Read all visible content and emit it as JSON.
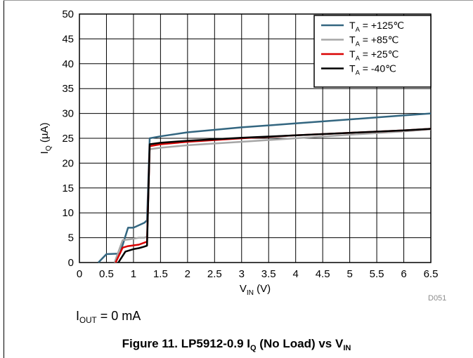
{
  "chart_data": {
    "type": "line",
    "xlabel": {
      "main": "V",
      "sub": "IN",
      "tail": " (V)"
    },
    "ylabel": {
      "main": "I",
      "sub": "Q",
      "tail": " (µA)"
    },
    "xlim": [
      0,
      6.5
    ],
    "ylim": [
      0,
      50
    ],
    "x_ticks": [
      "0",
      "0.5",
      "1",
      "1.5",
      "2",
      "2.5",
      "3",
      "3.5",
      "4",
      "4.5",
      "5",
      "5.5",
      "6",
      "6.5"
    ],
    "y_ticks": [
      "0",
      "5",
      "10",
      "15",
      "20",
      "25",
      "30",
      "35",
      "40",
      "45",
      "50"
    ],
    "grid": true,
    "legend_position": "top-right",
    "series": [
      {
        "label_main": "T",
        "label_sub": "A",
        "label_tail": " = +125℃",
        "color": "#336680",
        "x": [
          0.35,
          0.5,
          0.75,
          0.9,
          1.0,
          1.2,
          1.25,
          1.3,
          1.5,
          2.0,
          3.0,
          4.0,
          5.0,
          6.0,
          6.5
        ],
        "y": [
          0,
          1.7,
          1.8,
          7.0,
          7.0,
          8.0,
          8.5,
          25.0,
          25.4,
          26.2,
          27.2,
          28.0,
          28.8,
          29.6,
          30.0
        ]
      },
      {
        "label_main": "T",
        "label_sub": "A",
        "label_tail": " = +85℃",
        "color": "#a6a6a6",
        "x": [
          0.65,
          0.8,
          0.95,
          1.1,
          1.2,
          1.25,
          1.3,
          1.5,
          2.0,
          3.0,
          4.0,
          5.0,
          6.0,
          6.5
        ],
        "y": [
          0,
          4.5,
          4.7,
          5.0,
          5.0,
          5.2,
          22.8,
          23.1,
          23.6,
          24.3,
          25.0,
          25.7,
          26.4,
          26.8
        ]
      },
      {
        "label_main": "T",
        "label_sub": "A",
        "label_tail": " = +25℃",
        "color": "#d90000",
        "x": [
          0.67,
          0.8,
          0.9,
          1.1,
          1.2,
          1.25,
          1.3,
          1.5,
          2.0,
          3.0,
          4.0,
          5.0,
          6.0,
          6.5
        ],
        "y": [
          0,
          3.0,
          3.3,
          3.6,
          4.0,
          4.2,
          23.4,
          23.8,
          24.3,
          25.0,
          25.6,
          26.1,
          26.6,
          26.9
        ]
      },
      {
        "label_main": "T",
        "label_sub": "A",
        "label_tail": " = -40℃",
        "color": "#000000",
        "x": [
          0.72,
          0.85,
          1.0,
          1.1,
          1.2,
          1.25,
          1.3,
          1.5,
          2.0,
          3.0,
          4.0,
          5.0,
          6.0,
          6.5
        ],
        "y": [
          0,
          2.2,
          2.7,
          2.9,
          3.2,
          3.4,
          23.8,
          24.1,
          24.5,
          25.1,
          25.6,
          26.1,
          26.6,
          26.9
        ]
      }
    ]
  },
  "figure_id": "D051",
  "condition": {
    "main": "I",
    "sub": "OUT",
    "tail": " = 0 mA"
  },
  "caption": {
    "prefix": "Figure 11. LP5912-0.9 I",
    "sub1": "Q",
    "middle": " (No Load) vs V",
    "sub2": "IN"
  }
}
